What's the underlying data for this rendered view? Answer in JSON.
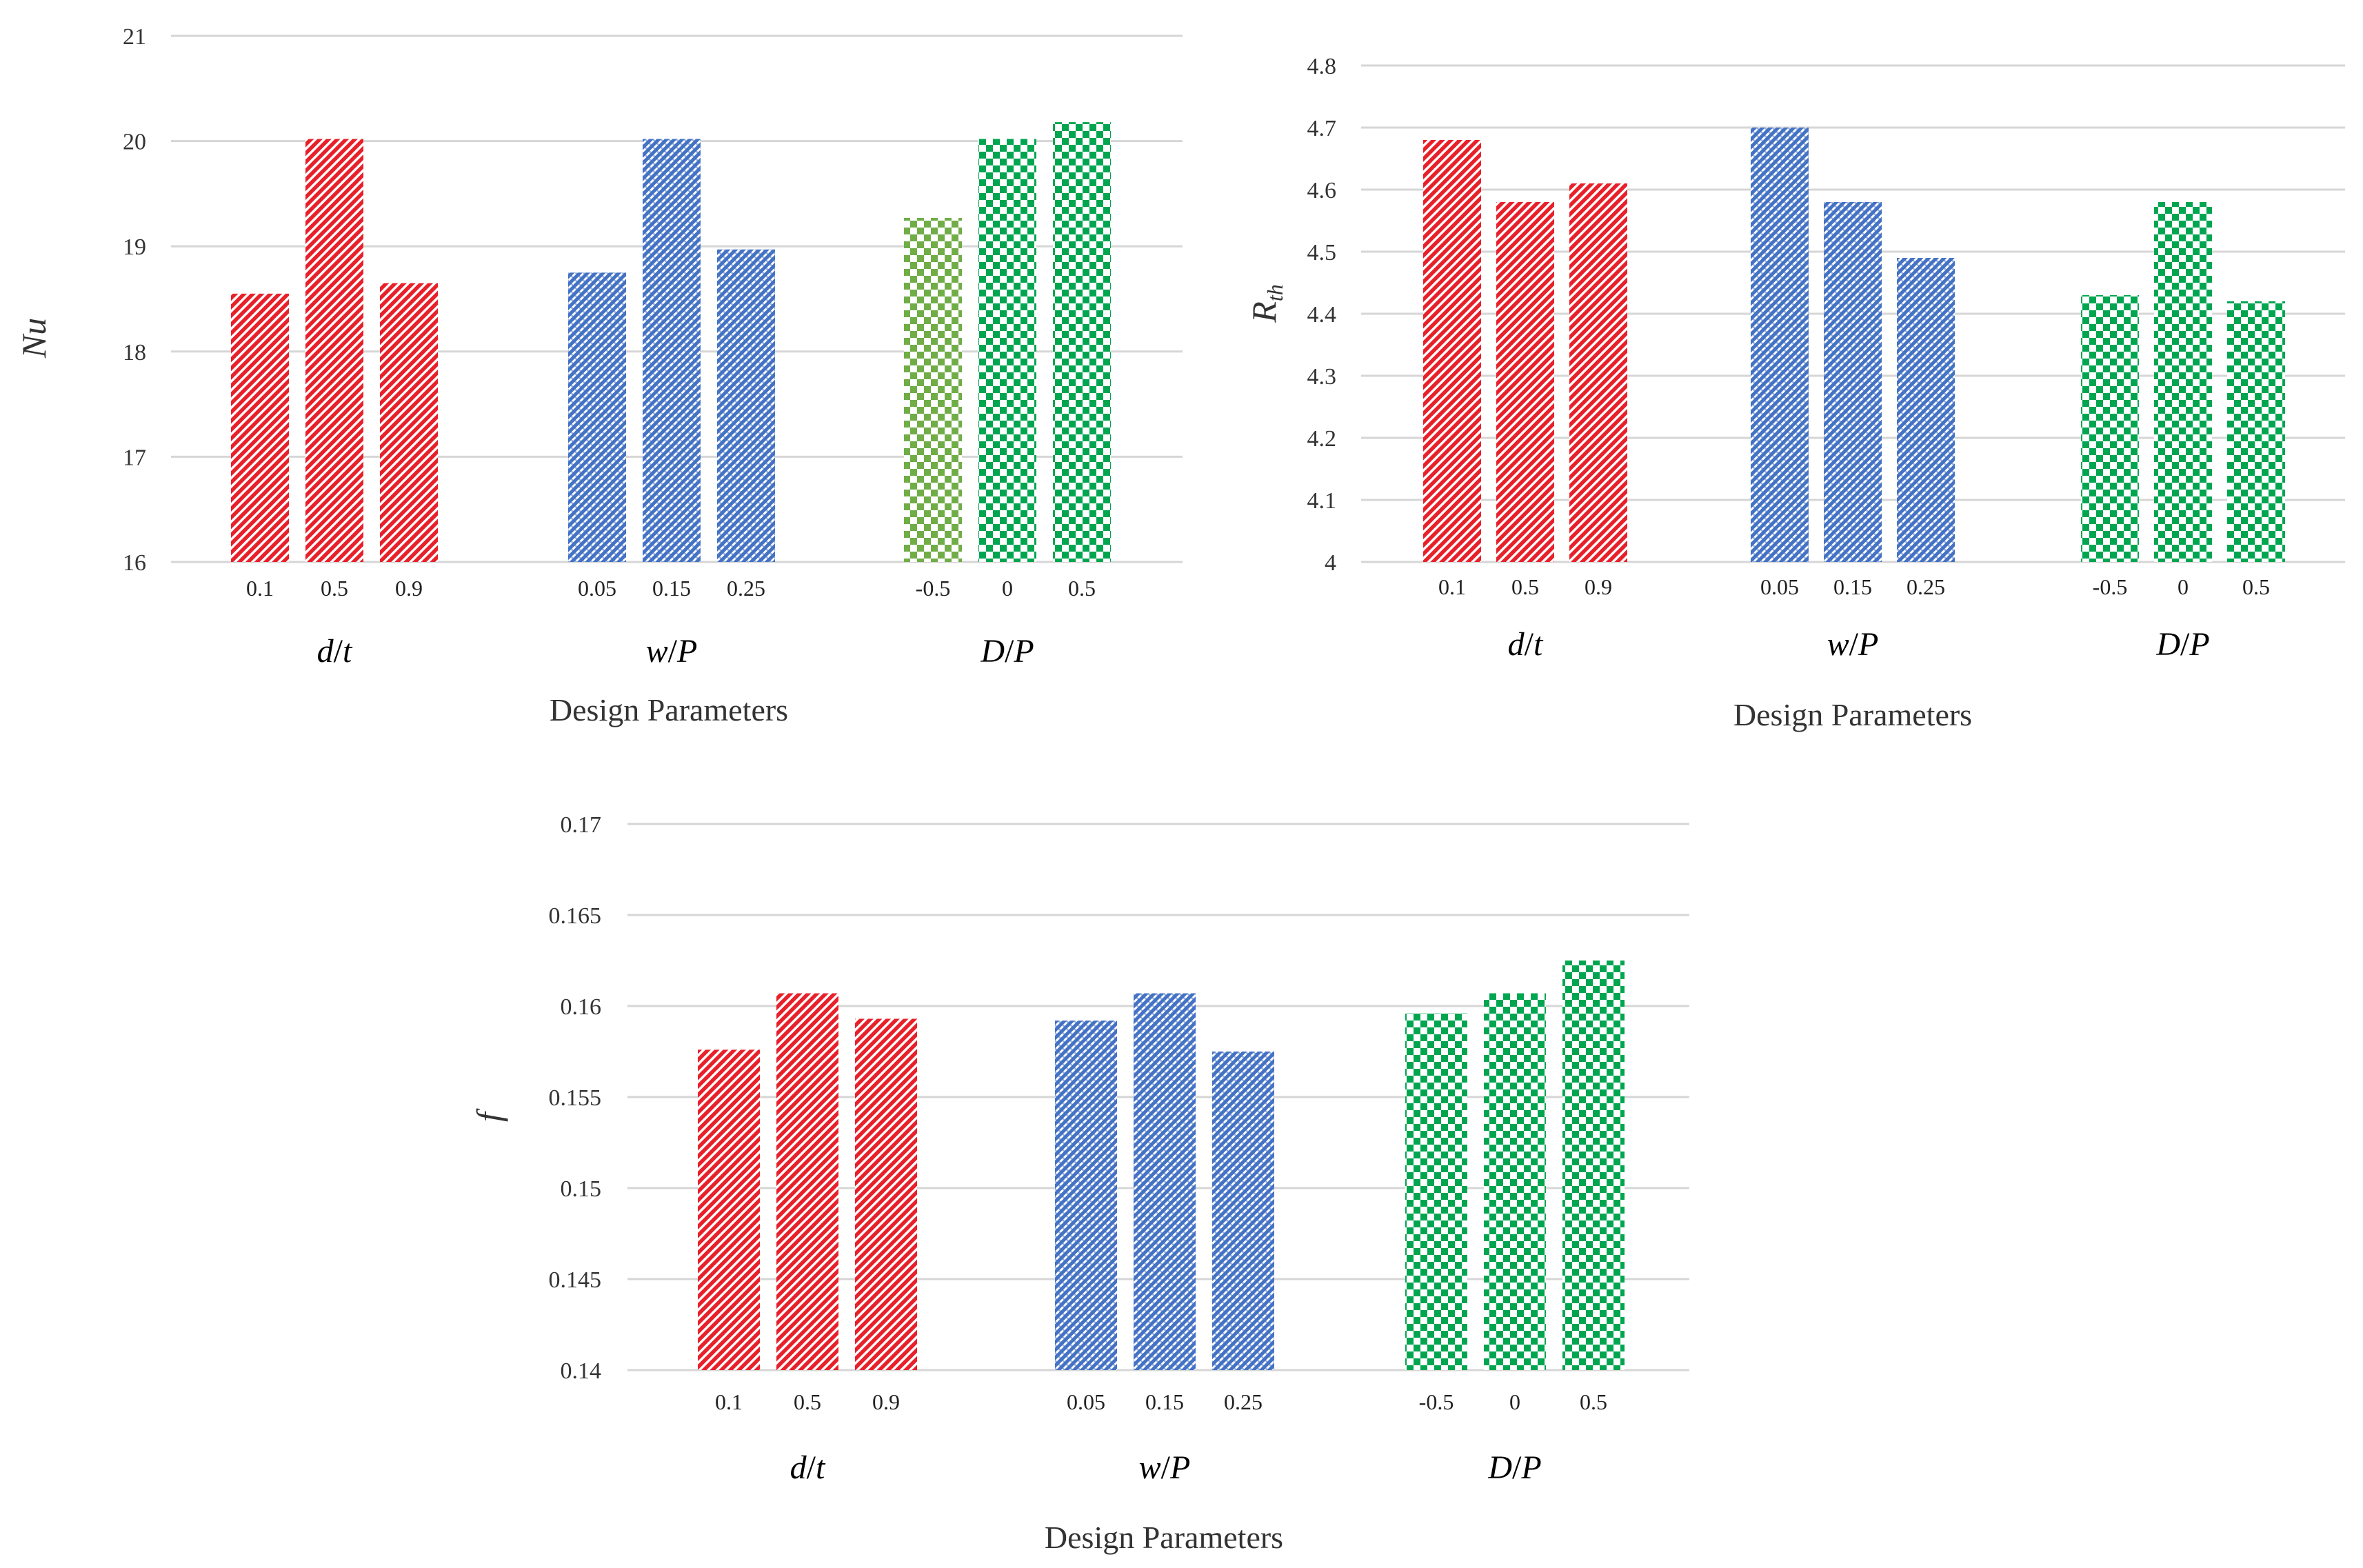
{
  "palette": {
    "red": "#e8202a",
    "blue": "#4472c4",
    "green": "#00a550",
    "olive": "#70ad47"
  },
  "chart_data": [
    {
      "type": "bar",
      "id": "nu",
      "ylabel": "Nu",
      "xlabel": "Design Parameters",
      "ylim": [
        16,
        21
      ],
      "yticks": [
        "16",
        "17",
        "18",
        "19",
        "20",
        "21"
      ],
      "groups": [
        {
          "label": "d/t",
          "labelParts": [
            "d",
            "/",
            "t"
          ],
          "color": "red",
          "pattern": "diag",
          "bars": [
            {
              "tick": "0.1",
              "value": 18.55
            },
            {
              "tick": "0.5",
              "value": 20.02
            },
            {
              "tick": "0.9",
              "value": 18.65
            }
          ]
        },
        {
          "label": "w/P",
          "labelParts": [
            "w",
            "/",
            "P"
          ],
          "color": "blue",
          "pattern": "weave",
          "bars": [
            {
              "tick": "0.05",
              "value": 18.75
            },
            {
              "tick": "0.15",
              "value": 20.02
            },
            {
              "tick": "0.25",
              "value": 18.97
            }
          ]
        },
        {
          "label": "D/P",
          "labelParts": [
            "D",
            "/",
            "P"
          ],
          "color": "green",
          "pattern": "check",
          "bars": [
            {
              "tick": "-0.5",
              "value": 19.27,
              "color": "olive"
            },
            {
              "tick": "0",
              "value": 20.02
            },
            {
              "tick": "0.5",
              "value": 20.18
            }
          ]
        }
      ]
    },
    {
      "type": "bar",
      "id": "rth",
      "ylabel": "R",
      "ylabelSub": "th",
      "xlabel": "Design Parameters",
      "ylim": [
        4,
        4.8
      ],
      "yticks": [
        "4",
        "4.1",
        "4.2",
        "4.3",
        "4.4",
        "4.5",
        "4.6",
        "4.7",
        "4.8"
      ],
      "groups": [
        {
          "label": "d/t",
          "labelParts": [
            "d",
            "/",
            "t"
          ],
          "color": "red",
          "pattern": "diag",
          "bars": [
            {
              "tick": "0.1",
              "value": 4.68
            },
            {
              "tick": "0.5",
              "value": 4.58
            },
            {
              "tick": "0.9",
              "value": 4.61
            }
          ]
        },
        {
          "label": "w/P",
          "labelParts": [
            "w",
            "/",
            "P"
          ],
          "color": "blue",
          "pattern": "weave",
          "bars": [
            {
              "tick": "0.05",
              "value": 4.7
            },
            {
              "tick": "0.15",
              "value": 4.58
            },
            {
              "tick": "0.25",
              "value": 4.49
            }
          ]
        },
        {
          "label": "D/P",
          "labelParts": [
            "D",
            "/",
            "P"
          ],
          "color": "green",
          "pattern": "check",
          "bars": [
            {
              "tick": "-0.5",
              "value": 4.43
            },
            {
              "tick": "0",
              "value": 4.58
            },
            {
              "tick": "0.5",
              "value": 4.42
            }
          ]
        }
      ]
    },
    {
      "type": "bar",
      "id": "f",
      "ylabel": "f",
      "xlabel": "Design Parameters",
      "ylim": [
        0.14,
        0.17
      ],
      "yticks": [
        "0.14",
        "0.145",
        "0.15",
        "0.155",
        "0.16",
        "0.165",
        "0.17"
      ],
      "groups": [
        {
          "label": "d/t",
          "labelParts": [
            "d",
            "/",
            "t"
          ],
          "color": "red",
          "pattern": "diag",
          "bars": [
            {
              "tick": "0.1",
              "value": 0.1576
            },
            {
              "tick": "0.5",
              "value": 0.1607
            },
            {
              "tick": "0.9",
              "value": 0.1593
            }
          ]
        },
        {
          "label": "w/P",
          "labelParts": [
            "w",
            "/",
            "P"
          ],
          "color": "blue",
          "pattern": "weave",
          "bars": [
            {
              "tick": "0.05",
              "value": 0.1592
            },
            {
              "tick": "0.15",
              "value": 0.1607
            },
            {
              "tick": "0.25",
              "value": 0.1575
            }
          ]
        },
        {
          "label": "D/P",
          "labelParts": [
            "D",
            "/",
            "P"
          ],
          "color": "green",
          "pattern": "check",
          "bars": [
            {
              "tick": "-0.5",
              "value": 0.1596
            },
            {
              "tick": "0",
              "value": 0.1607
            },
            {
              "tick": "0.5",
              "value": 0.1625
            }
          ]
        }
      ]
    }
  ]
}
